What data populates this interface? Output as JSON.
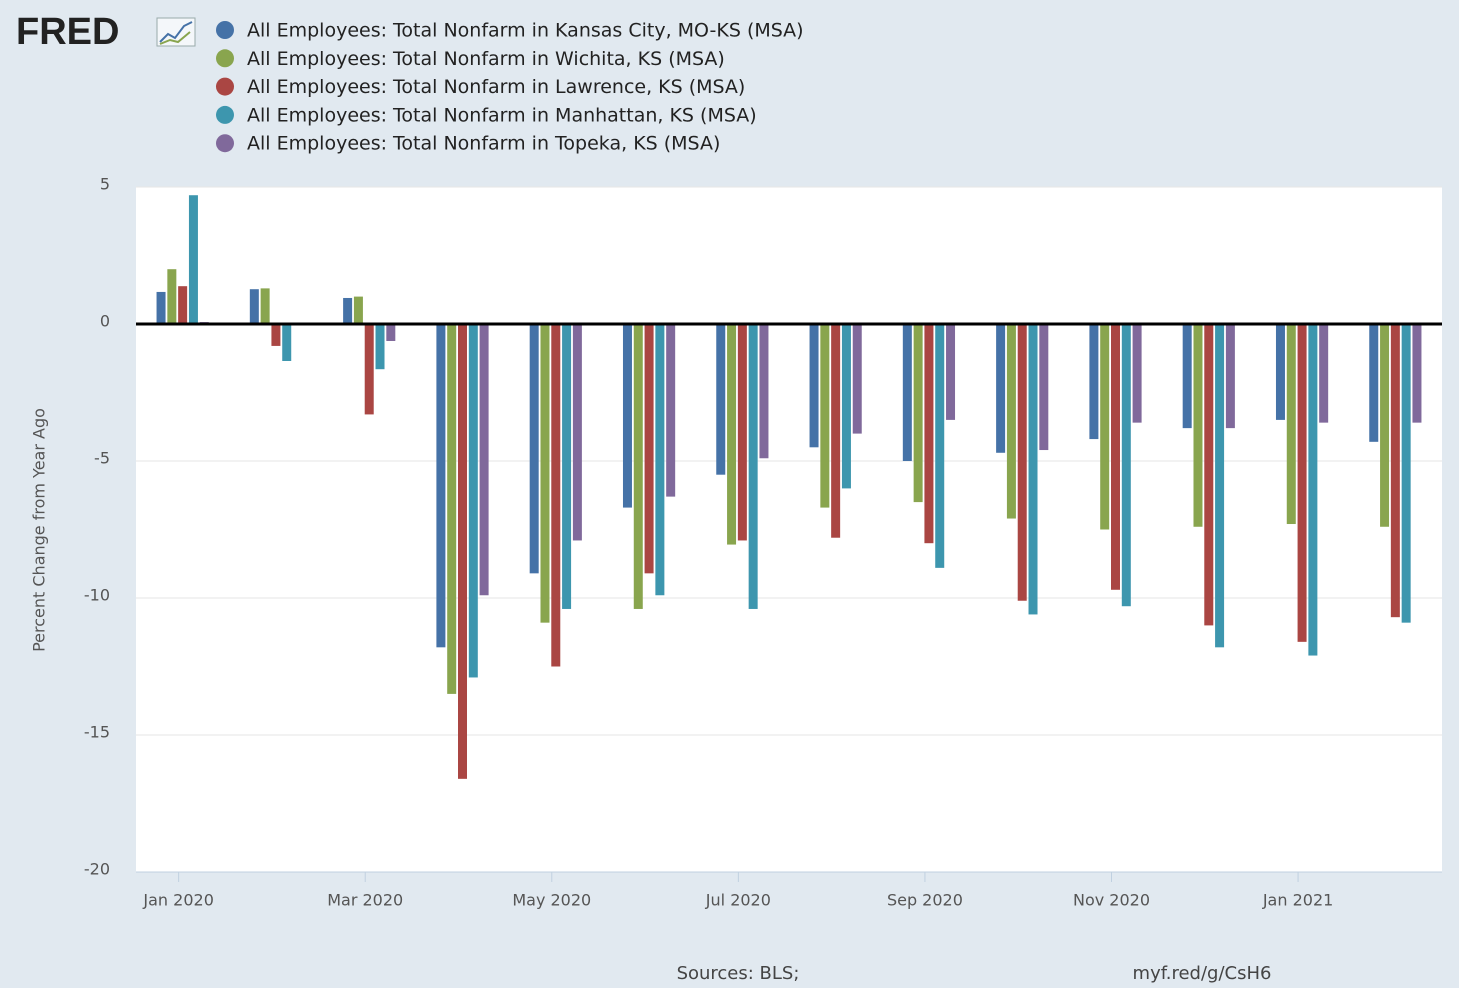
{
  "chart_data": {
    "type": "bar",
    "brand": "FRED",
    "y_axis_label": "Percent Change from Year Ago",
    "source": "Sources: BLS;",
    "url": "myf.red/g/CsH6",
    "categories": [
      "Jan 2020",
      null,
      "Mar 2020",
      null,
      "May 2020",
      null,
      "Jul 2020",
      null,
      "Sep 2020",
      null,
      "Nov 2020",
      null,
      "Jan 2021",
      null
    ],
    "series": [
      {
        "name": "All Employees: Total Nonfarm in Kansas City, MO-KS (MSA)",
        "color": "#4572a7",
        "values": [
          1.17,
          1.27,
          0.95,
          -11.8,
          -9.1,
          -6.7,
          -5.5,
          -4.5,
          -5.0,
          -4.7,
          -4.2,
          -3.8,
          -3.5,
          -4.3
        ]
      },
      {
        "name": "All Employees: Total Nonfarm in Wichita, KS (MSA)",
        "color": "#89a54e",
        "values": [
          2.0,
          1.3,
          1.0,
          -13.5,
          -10.9,
          -10.4,
          -8.05,
          -6.7,
          -6.5,
          -7.1,
          -7.5,
          -7.4,
          -7.3,
          -7.4
        ]
      },
      {
        "name": "All Employees: Total Nonfarm in Lawrence, KS (MSA)",
        "color": "#aa4643",
        "values": [
          1.38,
          -0.8,
          -3.3,
          -16.6,
          -12.5,
          -9.1,
          -7.9,
          -7.8,
          -8.0,
          -10.1,
          -9.7,
          -11.0,
          -11.6,
          -10.7
        ]
      },
      {
        "name": "All Employees: Total Nonfarm in Manhattan, KS (MSA)",
        "color": "#3d96ae",
        "values": [
          4.7,
          -1.35,
          -1.65,
          -12.9,
          -10.4,
          -9.9,
          -10.4,
          -6.0,
          -8.9,
          -10.6,
          -10.3,
          -11.8,
          -12.1,
          -10.9
        ]
      },
      {
        "name": "All Employees: Total Nonfarm in Topeka, KS (MSA)",
        "color": "#80699b",
        "values": [
          0.07,
          0.0,
          -0.62,
          -9.9,
          -7.9,
          -6.3,
          -4.9,
          -4.0,
          -3.5,
          -4.6,
          -3.6,
          -3.8,
          -3.6,
          -3.6
        ]
      }
    ],
    "ylim": [
      -20,
      5
    ],
    "yticks": [
      -20,
      -15,
      -10,
      -5,
      0,
      5
    ],
    "grid": true
  }
}
